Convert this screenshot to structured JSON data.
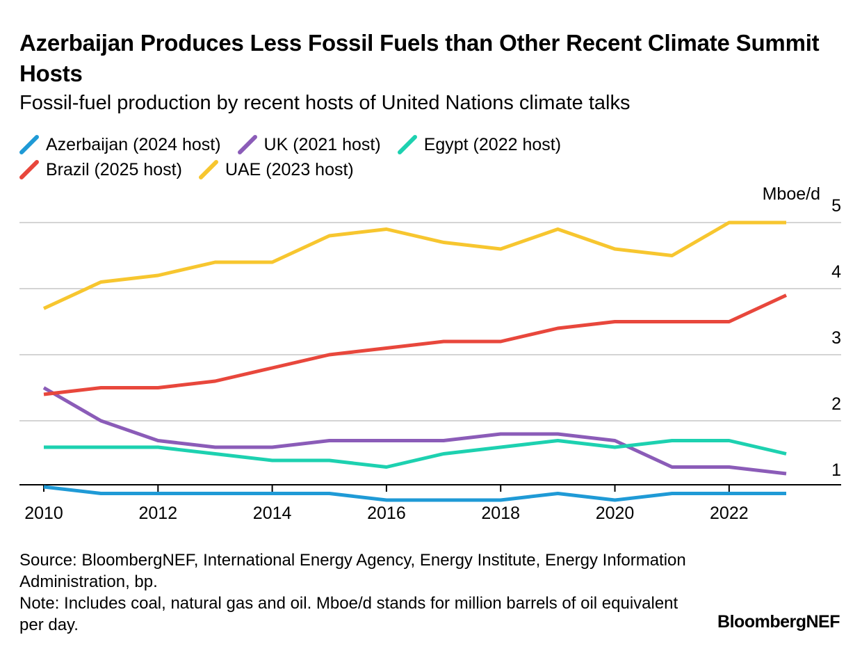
{
  "header": {
    "title": "Azerbaijan Produces Less Fossil Fuels than Other Recent Climate Summit Hosts",
    "subtitle": "Fossil-fuel production by recent hosts of United Nations climate talks"
  },
  "footer": {
    "source": "Source: BloombergNEF, International Energy Agency, Energy Institute, Energy Information Administration, bp.",
    "note": "Note: Includes coal, natural gas and oil. Mboe/d stands for million barrels of oil equivalent per day.",
    "brand": "BloombergNEF"
  },
  "chart_data": {
    "type": "line",
    "title": "Azerbaijan Produces Less Fossil Fuels than Other Recent Climate Summit Hosts",
    "subtitle": "Fossil-fuel production by recent hosts of United Nations climate talks",
    "xlabel": "",
    "ylabel": "Mboe/d",
    "x": [
      2010,
      2011,
      2012,
      2013,
      2014,
      2015,
      2016,
      2017,
      2018,
      2019,
      2020,
      2021,
      2022,
      2023
    ],
    "xticks": [
      2010,
      2012,
      2014,
      2016,
      2018,
      2020,
      2022
    ],
    "yticks": [
      1,
      2,
      3,
      4,
      5
    ],
    "xlim": [
      2009.6,
      2024.0
    ],
    "ylim": [
      0.7,
      5.2
    ],
    "grid": true,
    "y_axis_side": "right",
    "legend_position": "top-left",
    "series": [
      {
        "name": "Azerbaijan (2024 host)",
        "color": "#1f9ad6",
        "values": [
          1.0,
          0.9,
          0.9,
          0.9,
          0.9,
          0.9,
          0.8,
          0.8,
          0.8,
          0.9,
          0.8,
          0.9,
          0.9,
          0.9
        ]
      },
      {
        "name": "UK (2021 host)",
        "color": "#8b5cb8",
        "values": [
          2.5,
          2.0,
          1.7,
          1.6,
          1.6,
          1.7,
          1.7,
          1.7,
          1.8,
          1.8,
          1.7,
          1.3,
          1.3,
          1.2
        ]
      },
      {
        "name": "Egypt (2022 host)",
        "color": "#1dd1b0",
        "values": [
          1.6,
          1.6,
          1.6,
          1.5,
          1.4,
          1.4,
          1.3,
          1.5,
          1.6,
          1.7,
          1.6,
          1.7,
          1.7,
          1.5
        ]
      },
      {
        "name": "Brazil (2025 host)",
        "color": "#e8473c",
        "values": [
          2.4,
          2.5,
          2.5,
          2.6,
          2.8,
          3.0,
          3.1,
          3.2,
          3.2,
          3.4,
          3.5,
          3.5,
          3.5,
          3.9
        ]
      },
      {
        "name": "UAE (2023 host)",
        "color": "#f7c62f",
        "values": [
          3.7,
          4.1,
          4.2,
          4.4,
          4.4,
          4.8,
          4.9,
          4.7,
          4.6,
          4.9,
          4.6,
          4.5,
          5.0,
          5.0
        ]
      }
    ],
    "legend_rows": [
      [
        0,
        1,
        2
      ],
      [
        3,
        4
      ]
    ]
  }
}
